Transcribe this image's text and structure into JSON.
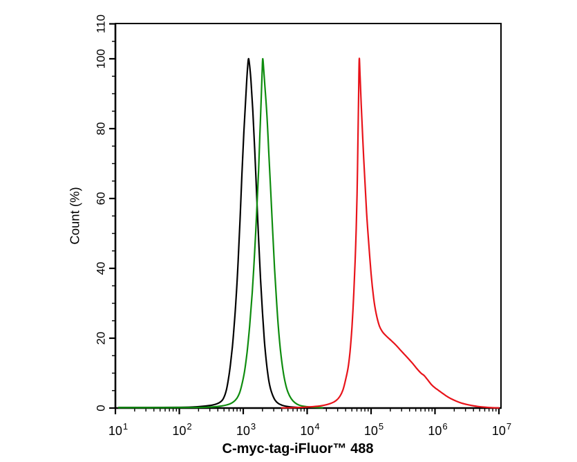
{
  "chart_data": {
    "type": "line",
    "variant": "flow-cytometry-histogram-overlay",
    "title": "",
    "xlabel": "C-myc-tag-iFluor™ 488",
    "ylabel": "Count (%)",
    "x_scale": "log10",
    "xlim_log10": [
      1,
      7
    ],
    "ylim": [
      0,
      110
    ],
    "grid": false,
    "frame": true,
    "legend": null,
    "x_ticks": {
      "base": "10",
      "exponents": [
        "1",
        "2",
        "3",
        "4",
        "5",
        "6",
        "7"
      ]
    },
    "y_ticks": {
      "values": [
        0,
        20,
        40,
        60,
        80,
        100,
        110
      ],
      "labels": [
        "0",
        "20",
        "40",
        "60",
        "80",
        "100",
        "110"
      ],
      "minor_step": 5
    },
    "axis_color": "#000000",
    "series": [
      {
        "name": "black curve",
        "color": "#000000",
        "peak_x_approx": 1200,
        "peak_pct": 100,
        "points_log10x_pct": [
          [
            1.05,
            0.15
          ],
          [
            2.0,
            0.2
          ],
          [
            2.3,
            0.4
          ],
          [
            2.5,
            0.8
          ],
          [
            2.6,
            1.3
          ],
          [
            2.67,
            2.2
          ],
          [
            2.71,
            3.6
          ],
          [
            2.74,
            5.5
          ],
          [
            2.77,
            8.5
          ],
          [
            2.8,
            12.5
          ],
          [
            2.83,
            17.5
          ],
          [
            2.86,
            24
          ],
          [
            2.89,
            32
          ],
          [
            2.92,
            42
          ],
          [
            2.95,
            54
          ],
          [
            2.98,
            67
          ],
          [
            3.01,
            79
          ],
          [
            3.04,
            89
          ],
          [
            3.06,
            95.5
          ],
          [
            3.075,
            99
          ],
          [
            3.085,
            100
          ],
          [
            3.1,
            98
          ],
          [
            3.12,
            94
          ],
          [
            3.15,
            85
          ],
          [
            3.18,
            74
          ],
          [
            3.21,
            61
          ],
          [
            3.24,
            48.5
          ],
          [
            3.27,
            37
          ],
          [
            3.3,
            27.5
          ],
          [
            3.33,
            19.5
          ],
          [
            3.36,
            13.5
          ],
          [
            3.39,
            9.0
          ],
          [
            3.42,
            6.0
          ],
          [
            3.46,
            3.7
          ],
          [
            3.5,
            2.2
          ],
          [
            3.55,
            1.3
          ],
          [
            3.61,
            0.8
          ],
          [
            3.69,
            0.45
          ],
          [
            3.79,
            0.25
          ],
          [
            3.92,
            0.12
          ],
          [
            4.05,
            0.06
          ]
        ]
      },
      {
        "name": "green curve",
        "color": "#0e8c0e",
        "peak_x_approx": 2000,
        "peak_pct": 100,
        "points_log10x_pct": [
          [
            1.05,
            0.12
          ],
          [
            2.2,
            0.15
          ],
          [
            2.5,
            0.3
          ],
          [
            2.66,
            0.6
          ],
          [
            2.78,
            1.1
          ],
          [
            2.85,
            1.8
          ],
          [
            2.9,
            2.8
          ],
          [
            2.94,
            4.2
          ],
          [
            2.98,
            6.8
          ],
          [
            3.02,
            10.5
          ],
          [
            3.06,
            16
          ],
          [
            3.1,
            23.5
          ],
          [
            3.14,
            33
          ],
          [
            3.18,
            45
          ],
          [
            3.21,
            56
          ],
          [
            3.24,
            68
          ],
          [
            3.26,
            78
          ],
          [
            3.28,
            88
          ],
          [
            3.295,
            96
          ],
          [
            3.305,
            100
          ],
          [
            3.32,
            97
          ],
          [
            3.34,
            92
          ],
          [
            3.37,
            84
          ],
          [
            3.4,
            73
          ],
          [
            3.43,
            62
          ],
          [
            3.46,
            51
          ],
          [
            3.49,
            40
          ],
          [
            3.52,
            31
          ],
          [
            3.55,
            23
          ],
          [
            3.58,
            17
          ],
          [
            3.62,
            11
          ],
          [
            3.66,
            7
          ],
          [
            3.7,
            4.5
          ],
          [
            3.75,
            2.7
          ],
          [
            3.81,
            1.5
          ],
          [
            3.88,
            0.8
          ],
          [
            3.97,
            0.45
          ],
          [
            4.09,
            0.25
          ],
          [
            4.24,
            0.1
          ]
        ]
      },
      {
        "name": "red curve",
        "color": "#e8131a",
        "peak_x_approx": 65000,
        "peak_pct": 100,
        "points_log10x_pct": [
          [
            3.6,
            0.05
          ],
          [
            3.85,
            0.15
          ],
          [
            4.05,
            0.35
          ],
          [
            4.2,
            0.6
          ],
          [
            4.3,
            0.95
          ],
          [
            4.38,
            1.4
          ],
          [
            4.45,
            2.1
          ],
          [
            4.51,
            3.3
          ],
          [
            4.56,
            5.2
          ],
          [
            4.6,
            8.0
          ],
          [
            4.64,
            11.5
          ],
          [
            4.67,
            16
          ],
          [
            4.7,
            23
          ],
          [
            4.73,
            33
          ],
          [
            4.76,
            47
          ],
          [
            4.78,
            61
          ],
          [
            4.795,
            77
          ],
          [
            4.805,
            90
          ],
          [
            4.815,
            100
          ],
          [
            4.828,
            95
          ],
          [
            4.845,
            87
          ],
          [
            4.87,
            77
          ],
          [
            4.9,
            66
          ],
          [
            4.93,
            56
          ],
          [
            4.96,
            48
          ],
          [
            5.0,
            38.5
          ],
          [
            5.04,
            31.5
          ],
          [
            5.08,
            27
          ],
          [
            5.13,
            23.5
          ],
          [
            5.18,
            21.8
          ],
          [
            5.24,
            20.6
          ],
          [
            5.31,
            19.4
          ],
          [
            5.38,
            18.2
          ],
          [
            5.45,
            16.8
          ],
          [
            5.52,
            15.4
          ],
          [
            5.59,
            14.0
          ],
          [
            5.65,
            12.8
          ],
          [
            5.72,
            11.2
          ],
          [
            5.78,
            10.0
          ],
          [
            5.83,
            9.3
          ],
          [
            5.88,
            8.2
          ],
          [
            5.94,
            6.8
          ],
          [
            6.0,
            5.8
          ],
          [
            6.06,
            5.0
          ],
          [
            6.12,
            4.2
          ],
          [
            6.19,
            3.3
          ],
          [
            6.26,
            2.6
          ],
          [
            6.33,
            2.0
          ],
          [
            6.41,
            1.45
          ],
          [
            6.49,
            1.05
          ],
          [
            6.57,
            0.75
          ],
          [
            6.67,
            0.45
          ],
          [
            6.78,
            0.25
          ],
          [
            6.9,
            0.1
          ],
          [
            7.0,
            0.04
          ]
        ]
      }
    ]
  }
}
